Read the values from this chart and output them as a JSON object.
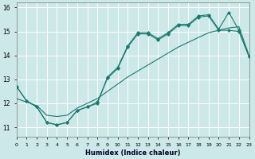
{
  "title": "",
  "xlabel": "Humidex (Indice chaleur)",
  "xlim": [
    0,
    23
  ],
  "ylim": [
    10.6,
    16.2
  ],
  "bg_color": "#cce8e8",
  "line_color": "#1a7a6e",
  "grid_color": "#ffffff",
  "line1_y": [
    12.7,
    12.1,
    11.85,
    11.2,
    11.1,
    11.2,
    11.7,
    11.85,
    12.0,
    13.1,
    13.5,
    14.4,
    14.95,
    14.95,
    14.7,
    14.95,
    15.3,
    15.3,
    15.65,
    15.7,
    15.1,
    15.8,
    15.05,
    13.95
  ],
  "line2_y": [
    12.7,
    12.1,
    11.85,
    11.2,
    11.1,
    11.2,
    11.7,
    11.85,
    12.05,
    13.05,
    13.45,
    14.35,
    14.9,
    14.9,
    14.65,
    14.9,
    15.25,
    15.25,
    15.6,
    15.65,
    15.05,
    15.05,
    15.0,
    13.95
  ],
  "line3_y": [
    12.2,
    12.05,
    11.9,
    11.5,
    11.45,
    11.5,
    11.8,
    12.0,
    12.2,
    12.5,
    12.8,
    13.1,
    13.35,
    13.6,
    13.85,
    14.1,
    14.35,
    14.55,
    14.75,
    14.95,
    15.05,
    15.15,
    15.2,
    14.0
  ],
  "xtick_labels": [
    "0",
    "1",
    "2",
    "3",
    "4",
    "5",
    "6",
    "7",
    "8",
    "9",
    "10",
    "11",
    "12",
    "13",
    "14",
    "15",
    "16",
    "17",
    "18",
    "19",
    "20",
    "21",
    "22",
    "23"
  ],
  "ytick_values": [
    11,
    12,
    13,
    14,
    15,
    16
  ]
}
